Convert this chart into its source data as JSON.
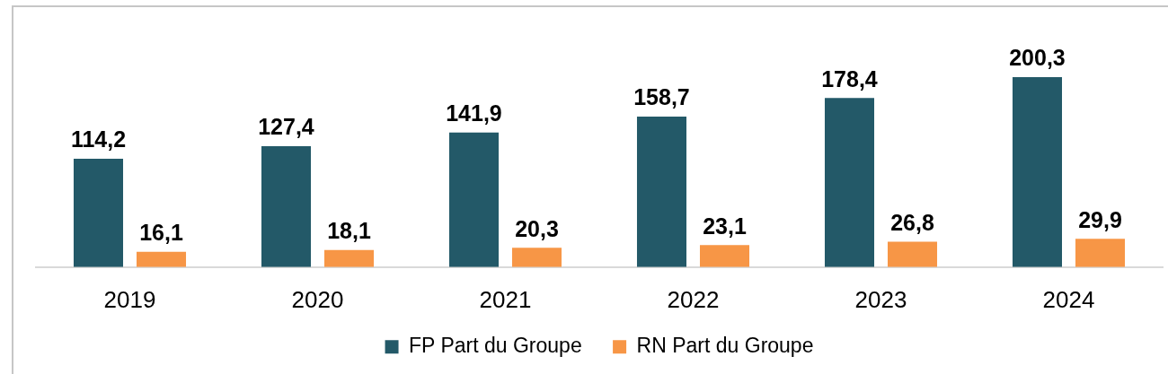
{
  "chart_data": {
    "type": "bar",
    "categories": [
      "2019",
      "2020",
      "2021",
      "2022",
      "2023",
      "2024"
    ],
    "series": [
      {
        "name": "FP Part du Groupe",
        "color": "#235968",
        "values": [
          114.2,
          127.4,
          141.9,
          158.7,
          178.4,
          200.3
        ],
        "value_labels": [
          "114,2",
          "127,4",
          "141,9",
          "158,7",
          "178,4",
          "200,3"
        ]
      },
      {
        "name": "RN Part du Groupe",
        "color": "#f79646",
        "values": [
          16.1,
          18.1,
          20.3,
          23.1,
          26.8,
          29.9
        ],
        "value_labels": [
          "16,1",
          "18,1",
          "20,3",
          "23,1",
          "26,8",
          "29,9"
        ]
      }
    ],
    "legend": "bottom",
    "tick_labels": "x"
  }
}
